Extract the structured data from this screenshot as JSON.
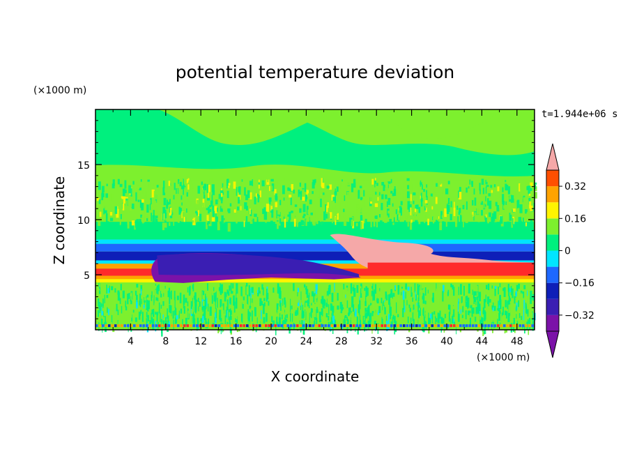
{
  "chart_data": {
    "type": "heatmap",
    "title": "potential temperature deviation",
    "xlabel": "X coordinate",
    "ylabel": "Z coordinate",
    "x_unit": "(×1000 m)",
    "y_unit": "(×1000 m)",
    "time_label": "t=1.944e+06 s",
    "xlim": [
      0,
      50
    ],
    "ylim": [
      0,
      20
    ],
    "x_ticks": [
      4,
      8,
      12,
      16,
      20,
      24,
      28,
      32,
      36,
      40,
      44,
      48
    ],
    "y_ticks": [
      5,
      10,
      15
    ],
    "colorbar": {
      "levels": [
        -0.4,
        -0.32,
        -0.24,
        -0.16,
        -0.08,
        0,
        0.08,
        0.16,
        0.24,
        0.32,
        0.4
      ],
      "tick_labels": [
        "0.32",
        "0.16",
        "0",
        "−0.16",
        "−0.32"
      ],
      "tick_values": [
        0.32,
        0.16,
        0,
        -0.16,
        -0.32
      ],
      "colors": [
        "#7b12a8",
        "#3a1eb3",
        "#0e1fb8",
        "#1e68ff",
        "#00e5ff",
        "#00f07e",
        "#7df02e",
        "#fff400",
        "#ffa300",
        "#ff4f00",
        "#ff2a2a"
      ],
      "extend_low_color": "#7b12a8",
      "extend_high_color": "#f5a8a8"
    },
    "grid": false
  }
}
